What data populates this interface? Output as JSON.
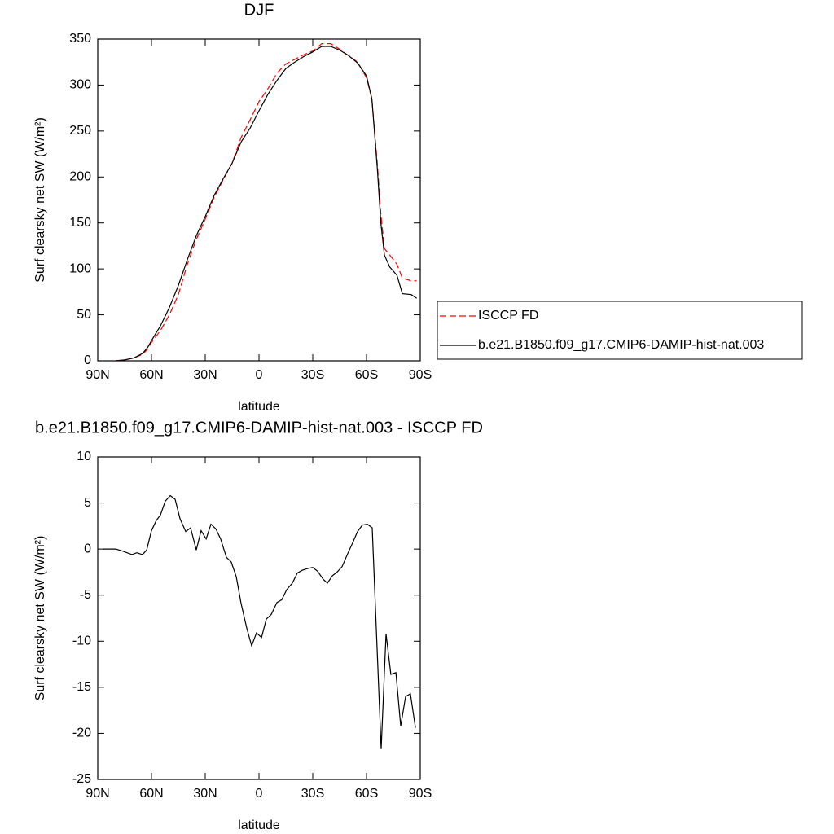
{
  "chart_data": [
    {
      "type": "line",
      "title": "DJF",
      "xlabel": "latitude",
      "ylabel": "Surf clearsky net SW (W/m²)",
      "xlim": [
        90,
        -90
      ],
      "ylim": [
        0,
        350
      ],
      "xticks": [
        {
          "value": 90,
          "label": "90N"
        },
        {
          "value": 60,
          "label": "60N"
        },
        {
          "value": 30,
          "label": "30N"
        },
        0,
        {
          "value": -30,
          "label": "30S"
        },
        {
          "value": -60,
          "label": "60S"
        },
        {
          "value": -90,
          "label": "90S"
        }
      ],
      "yticks": [
        0,
        50,
        100,
        150,
        200,
        250,
        300,
        350
      ],
      "legend": "right",
      "x": [
        80,
        75,
        70,
        65,
        62,
        60,
        55,
        50,
        45,
        40,
        35,
        30,
        25,
        20,
        15,
        10,
        5,
        0,
        -5,
        -10,
        -15,
        -20,
        -25,
        -30,
        -35,
        -40,
        -45,
        -50,
        -55,
        -60,
        -63,
        -66,
        -68,
        -70,
        -73,
        -77,
        -80,
        -85,
        -88
      ],
      "series": [
        {
          "name": "ISCCP FD",
          "color": "#ff0000",
          "dashed": true,
          "values": [
            0,
            1,
            3,
            7,
            13,
            20,
            33,
            50,
            72,
            105,
            132,
            154,
            178,
            197,
            215,
            243,
            262,
            282,
            296,
            313,
            323,
            328,
            333,
            337,
            345,
            345,
            339,
            332,
            325,
            308,
            285,
            215,
            160,
            122,
            115,
            105,
            90,
            87,
            87
          ]
        },
        {
          "name": "b.e21.B1850.f09_g17.CMIP6-DAMIP-hist-nat.003",
          "color": "#000000",
          "dashed": false,
          "values": [
            0,
            1,
            3,
            8,
            15,
            22,
            38,
            58,
            82,
            110,
            136,
            157,
            180,
            198,
            215,
            238,
            253,
            272,
            290,
            305,
            318,
            325,
            331,
            336,
            342,
            342,
            338,
            332,
            324,
            310,
            285,
            210,
            150,
            115,
            102,
            93,
            73,
            72,
            68
          ]
        }
      ]
    },
    {
      "type": "line",
      "title": "b.e21.B1850.f09_g17.CMIP6-DAMIP-hist-nat.003 - ISCCP FD",
      "xlabel": "latitude",
      "ylabel": "Surf clearsky net SW (W/m²)",
      "xlim": [
        90,
        -90
      ],
      "ylim": [
        -25,
        10
      ],
      "xticks": [
        {
          "value": 90,
          "label": "90N"
        },
        {
          "value": 60,
          "label": "60N"
        },
        {
          "value": 30,
          "label": "30N"
        },
        0,
        {
          "value": -30,
          "label": "30S"
        },
        {
          "value": -60,
          "label": "60S"
        },
        {
          "value": -90,
          "label": "90S"
        }
      ],
      "yticks": [
        10,
        5,
        0,
        -5,
        -10,
        -15,
        -20,
        -25
      ],
      "color": "#000000",
      "x": [
        87.3,
        80,
        76.4,
        70.9,
        68.2,
        65,
        62.7,
        60,
        57.3,
        55,
        52.3,
        49.5,
        46.8,
        44.1,
        40.9,
        38.2,
        35,
        32.3,
        29.5,
        26.8,
        24.1,
        21.4,
        18.2,
        15.5,
        12.7,
        10,
        6.8,
        4.1,
        1.4,
        -1.4,
        -4.1,
        -6.8,
        -10,
        -12.7,
        -15.5,
        -18.6,
        -21.4,
        -24.1,
        -27.3,
        -30,
        -32.7,
        -35.9,
        -38.2,
        -40.9,
        -43.6,
        -46.4,
        -49.5,
        -52.3,
        -55,
        -57.7,
        -60.5,
        -63.2,
        -68.2,
        -70.9,
        -73.6,
        -76.4,
        -79.1,
        -81.8,
        -84.5,
        -87.3
      ],
      "values": [
        0,
        0,
        -0.2,
        -0.6,
        -0.4,
        -0.6,
        -0.1,
        2,
        3.1,
        3.7,
        5.2,
        5.8,
        5.4,
        3.3,
        1.9,
        2.3,
        -0.1,
        2.0,
        1.1,
        2.7,
        2.2,
        1.1,
        -0.9,
        -1.4,
        -3.0,
        -5.9,
        -8.6,
        -10.5,
        -9.1,
        -9.6,
        -7.6,
        -7.1,
        -5.8,
        -5.5,
        -4.4,
        -3.7,
        -2.6,
        -2.3,
        -2.1,
        -2.0,
        -2.4,
        -3.3,
        -3.7,
        -2.9,
        -2.5,
        -1.9,
        -0.5,
        0.7,
        1.9,
        2.6,
        2.7,
        2.3,
        -21.7,
        -9.2,
        -13.6,
        -13.4,
        -19.2,
        -16.0,
        -15.7,
        -19.4
      ]
    }
  ]
}
